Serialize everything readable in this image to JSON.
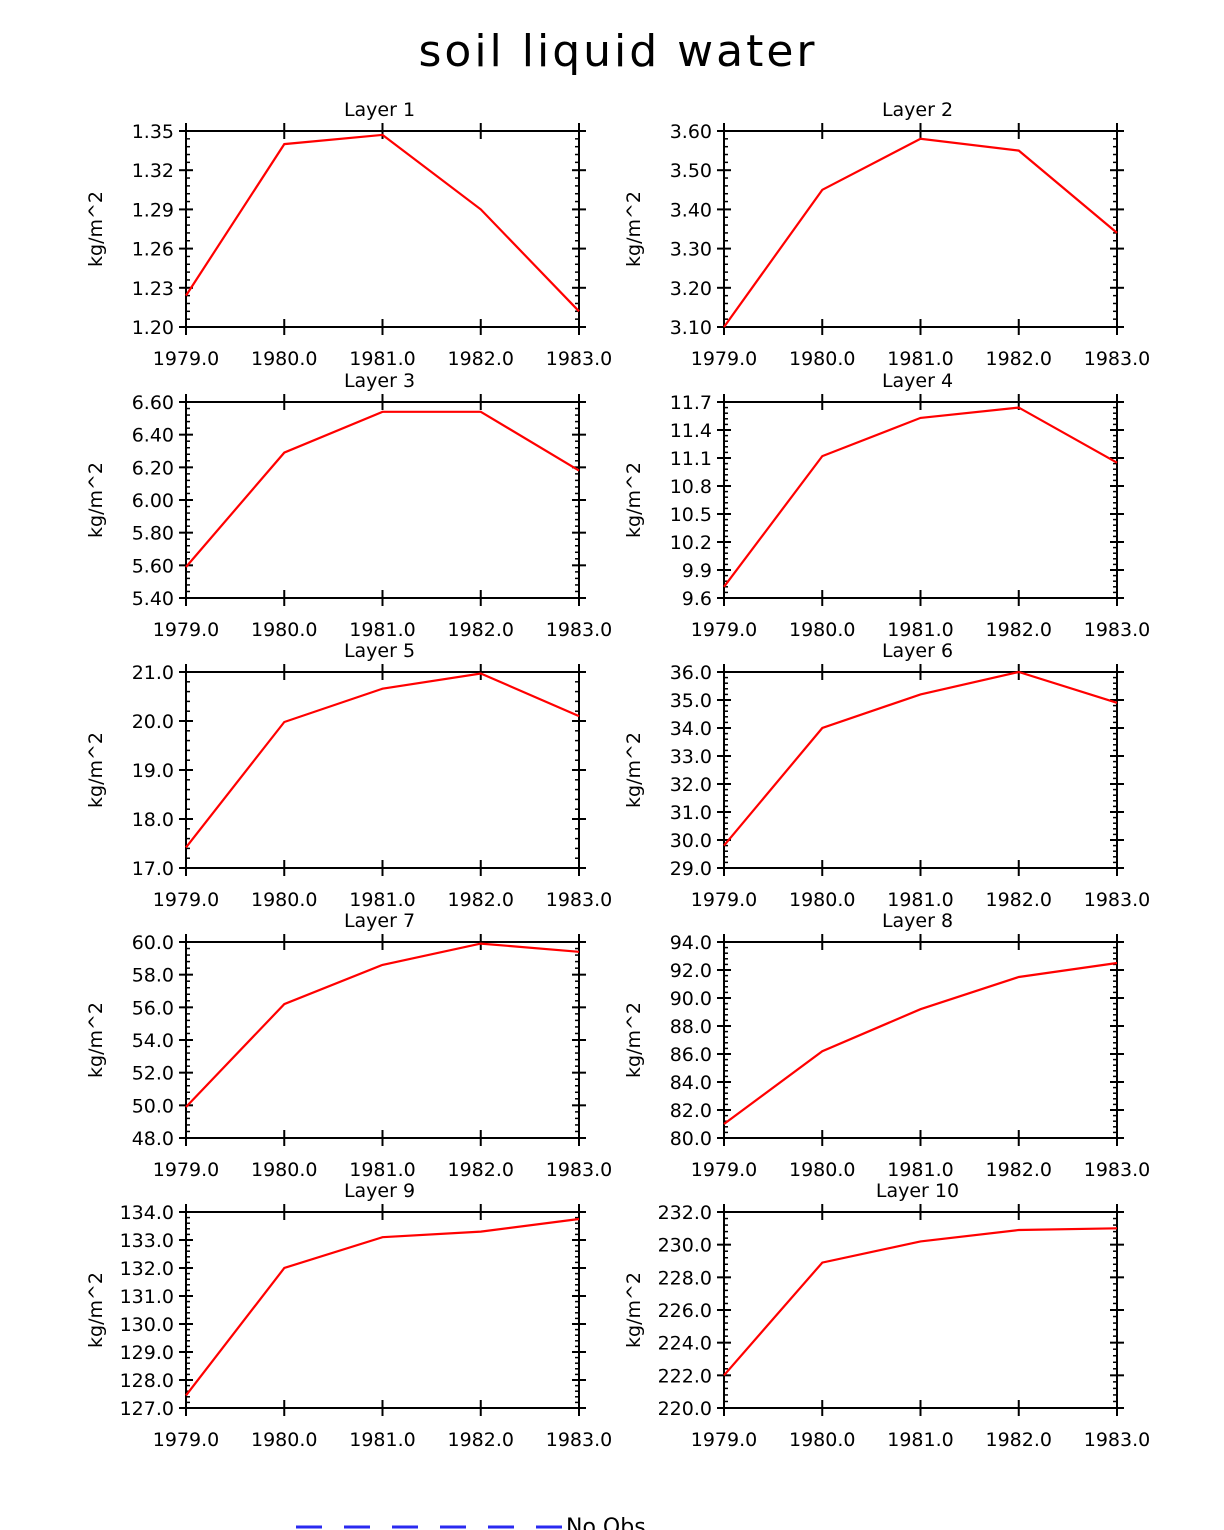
{
  "figure": {
    "title": "soil liquid water"
  },
  "legend": {
    "label": "No Obs",
    "line_color": "#2a2af0",
    "line_style": "dashed"
  },
  "series_color": "#ff0000",
  "chart_data": [
    {
      "type": "line",
      "title": "Layer 1",
      "ylabel": "kg/m^2",
      "x": [
        1979,
        1980,
        1981,
        1982,
        1983
      ],
      "xticks": [
        "1979.0",
        "1980.0",
        "1981.0",
        "1982.0",
        "1983.0"
      ],
      "xlim": [
        1979,
        1983
      ],
      "ylim": [
        1.2,
        1.35
      ],
      "yticks": [
        "1.20",
        "1.23",
        "1.26",
        "1.29",
        "1.32",
        "1.35"
      ],
      "ytick_values": [
        1.2,
        1.23,
        1.26,
        1.29,
        1.32,
        1.35
      ],
      "values": [
        1.224,
        1.34,
        1.347,
        1.29,
        1.212
      ]
    },
    {
      "type": "line",
      "title": "Layer 2",
      "ylabel": "kg/m^2",
      "x": [
        1979,
        1980,
        1981,
        1982,
        1983
      ],
      "xticks": [
        "1979.0",
        "1980.0",
        "1981.0",
        "1982.0",
        "1983.0"
      ],
      "xlim": [
        1979,
        1983
      ],
      "ylim": [
        3.1,
        3.6
      ],
      "yticks": [
        "3.10",
        "3.20",
        "3.30",
        "3.40",
        "3.50",
        "3.60"
      ],
      "ytick_values": [
        3.1,
        3.2,
        3.3,
        3.4,
        3.5,
        3.6
      ],
      "values": [
        3.1,
        3.45,
        3.58,
        3.55,
        3.34
      ]
    },
    {
      "type": "line",
      "title": "Layer 3",
      "ylabel": "kg/m^2",
      "x": [
        1979,
        1980,
        1981,
        1982,
        1983
      ],
      "xticks": [
        "1979.0",
        "1980.0",
        "1981.0",
        "1982.0",
        "1983.0"
      ],
      "xlim": [
        1979,
        1983
      ],
      "ylim": [
        5.4,
        6.6
      ],
      "yticks": [
        "5.40",
        "5.60",
        "5.80",
        "6.00",
        "6.20",
        "6.40",
        "6.60"
      ],
      "ytick_values": [
        5.4,
        5.6,
        5.8,
        6.0,
        6.2,
        6.4,
        6.6
      ],
      "values": [
        5.59,
        6.29,
        6.54,
        6.54,
        6.18
      ]
    },
    {
      "type": "line",
      "title": "Layer 4",
      "ylabel": "kg/m^2",
      "x": [
        1979,
        1980,
        1981,
        1982,
        1983
      ],
      "xticks": [
        "1979.0",
        "1980.0",
        "1981.0",
        "1982.0",
        "1983.0"
      ],
      "xlim": [
        1979,
        1983
      ],
      "ylim": [
        9.6,
        11.7
      ],
      "yticks": [
        "9.6",
        "9.9",
        "10.2",
        "10.5",
        "10.8",
        "11.1",
        "11.4",
        "11.7"
      ],
      "ytick_values": [
        9.6,
        9.9,
        10.2,
        10.5,
        10.8,
        11.1,
        11.4,
        11.7
      ],
      "values": [
        9.72,
        11.12,
        11.53,
        11.64,
        11.05
      ]
    },
    {
      "type": "line",
      "title": "Layer 5",
      "ylabel": "kg/m^2",
      "x": [
        1979,
        1980,
        1981,
        1982,
        1983
      ],
      "xticks": [
        "1979.0",
        "1980.0",
        "1981.0",
        "1982.0",
        "1983.0"
      ],
      "xlim": [
        1979,
        1983
      ],
      "ylim": [
        17.0,
        21.0
      ],
      "yticks": [
        "17.0",
        "18.0",
        "19.0",
        "20.0",
        "21.0"
      ],
      "ytick_values": [
        17.0,
        18.0,
        19.0,
        20.0,
        21.0
      ],
      "values": [
        17.42,
        19.98,
        20.66,
        20.97,
        20.1
      ]
    },
    {
      "type": "line",
      "title": "Layer 6",
      "ylabel": "kg/m^2",
      "x": [
        1979,
        1980,
        1981,
        1982,
        1983
      ],
      "xticks": [
        "1979.0",
        "1980.0",
        "1981.0",
        "1982.0",
        "1983.0"
      ],
      "xlim": [
        1979,
        1983
      ],
      "ylim": [
        29.0,
        36.0
      ],
      "yticks": [
        "29.0",
        "30.0",
        "31.0",
        "32.0",
        "33.0",
        "34.0",
        "35.0",
        "36.0"
      ],
      "ytick_values": [
        29.0,
        30.0,
        31.0,
        32.0,
        33.0,
        34.0,
        35.0,
        36.0
      ],
      "values": [
        29.8,
        34.0,
        35.2,
        36.0,
        34.9
      ]
    },
    {
      "type": "line",
      "title": "Layer 7",
      "ylabel": "kg/m^2",
      "x": [
        1979,
        1980,
        1981,
        1982,
        1983
      ],
      "xticks": [
        "1979.0",
        "1980.0",
        "1981.0",
        "1982.0",
        "1983.0"
      ],
      "xlim": [
        1979,
        1983
      ],
      "ylim": [
        48.0,
        60.0
      ],
      "yticks": [
        "48.0",
        "50.0",
        "52.0",
        "54.0",
        "56.0",
        "58.0",
        "60.0"
      ],
      "ytick_values": [
        48.0,
        50.0,
        52.0,
        54.0,
        56.0,
        58.0,
        60.0
      ],
      "values": [
        49.9,
        56.2,
        58.6,
        59.9,
        59.4
      ]
    },
    {
      "type": "line",
      "title": "Layer 8",
      "ylabel": "kg/m^2",
      "x": [
        1979,
        1980,
        1981,
        1982,
        1983
      ],
      "xticks": [
        "1979.0",
        "1980.0",
        "1981.0",
        "1982.0",
        "1983.0"
      ],
      "xlim": [
        1979,
        1983
      ],
      "ylim": [
        80.0,
        94.0
      ],
      "yticks": [
        "80.0",
        "82.0",
        "84.0",
        "86.0",
        "88.0",
        "90.0",
        "92.0",
        "94.0"
      ],
      "ytick_values": [
        80.0,
        82.0,
        84.0,
        86.0,
        88.0,
        90.0,
        92.0,
        94.0
      ],
      "values": [
        81.0,
        86.2,
        89.2,
        91.5,
        92.5
      ]
    },
    {
      "type": "line",
      "title": "Layer 9",
      "ylabel": "kg/m^2",
      "x": [
        1979,
        1980,
        1981,
        1982,
        1983
      ],
      "xticks": [
        "1979.0",
        "1980.0",
        "1981.0",
        "1982.0",
        "1983.0"
      ],
      "xlim": [
        1979,
        1983
      ],
      "ylim": [
        127.0,
        134.0
      ],
      "yticks": [
        "127.0",
        "128.0",
        "129.0",
        "130.0",
        "131.0",
        "132.0",
        "133.0",
        "134.0"
      ],
      "ytick_values": [
        127.0,
        128.0,
        129.0,
        130.0,
        131.0,
        132.0,
        133.0,
        134.0
      ],
      "values": [
        127.45,
        132.0,
        133.1,
        133.3,
        133.75
      ]
    },
    {
      "type": "line",
      "title": "Layer 10",
      "ylabel": "kg/m^2",
      "x": [
        1979,
        1980,
        1981,
        1982,
        1983
      ],
      "xticks": [
        "1979.0",
        "1980.0",
        "1981.0",
        "1982.0",
        "1983.0"
      ],
      "xlim": [
        1979,
        1983
      ],
      "ylim": [
        220.0,
        232.0
      ],
      "yticks": [
        "220.0",
        "222.0",
        "224.0",
        "226.0",
        "228.0",
        "230.0",
        "232.0"
      ],
      "ytick_values": [
        220.0,
        222.0,
        224.0,
        226.0,
        228.0,
        230.0,
        232.0
      ],
      "values": [
        222.0,
        228.9,
        230.2,
        230.9,
        231.0
      ]
    }
  ]
}
